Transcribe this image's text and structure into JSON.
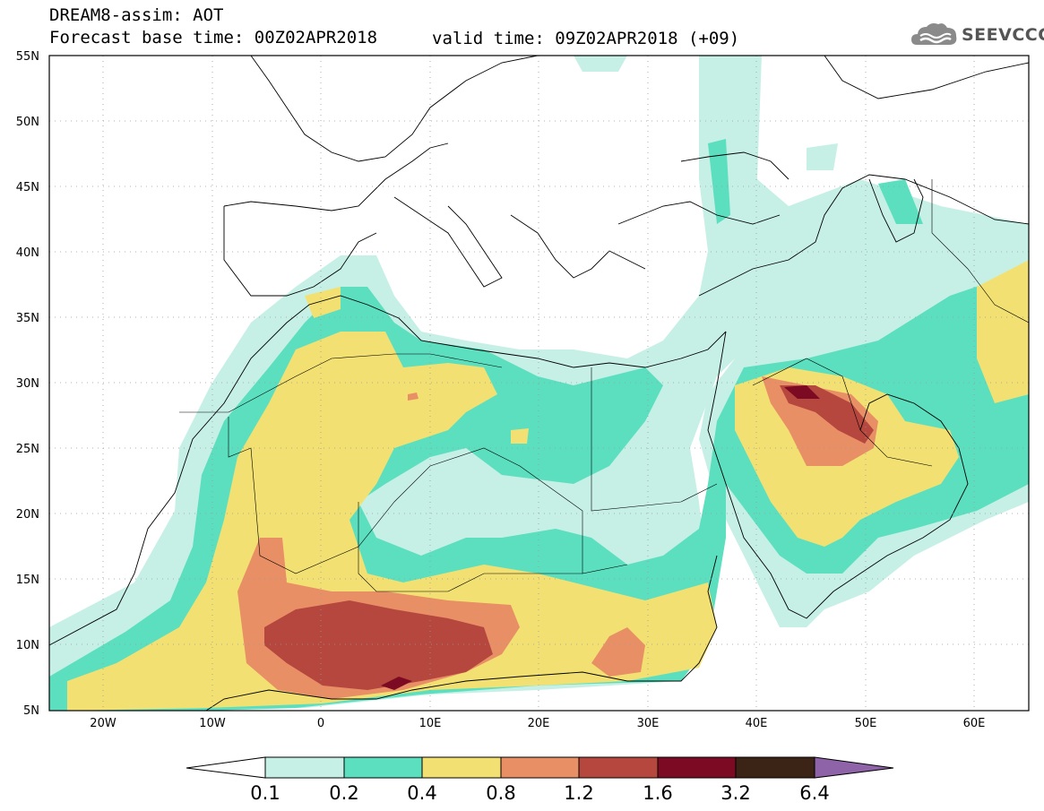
{
  "header": {
    "title": "DREAM8-assim: AOT",
    "base_time": "Forecast base time: 00Z02APR2018",
    "valid_time": "valid time: 09Z02APR2018 (+09)",
    "logo_text": "SEEVCCC"
  },
  "map": {
    "projection": "equirectangular",
    "lon_range": [
      -25,
      65
    ],
    "lat_range": [
      5,
      55
    ],
    "lat_labels": [
      "55N",
      "50N",
      "45N",
      "40N",
      "35N",
      "30N",
      "25N",
      "20N",
      "15N",
      "10N",
      "5N"
    ],
    "lon_labels": [
      "20W",
      "10W",
      "0",
      "10E",
      "20E",
      "30E",
      "40E",
      "50E",
      "60E"
    ],
    "gridlines": "dotted"
  },
  "colorbar": {
    "labels": [
      "0.1",
      "0.2",
      "0.4",
      "0.8",
      "1.2",
      "1.6",
      "3.2",
      "6.4"
    ],
    "colors": [
      "#ffffff",
      "#c6f0e6",
      "#5cdfbf",
      "#f2e172",
      "#e88f66",
      "#b5473e",
      "#7d0a23",
      "#3b2416",
      "#8e63a8"
    ]
  },
  "colors": {
    "lev1": "#c6f0e6",
    "lev2": "#5cdfbf",
    "lev3": "#f2e172",
    "lev4": "#e88f66",
    "lev5": "#b5473e",
    "lev6": "#7d0a23"
  }
}
